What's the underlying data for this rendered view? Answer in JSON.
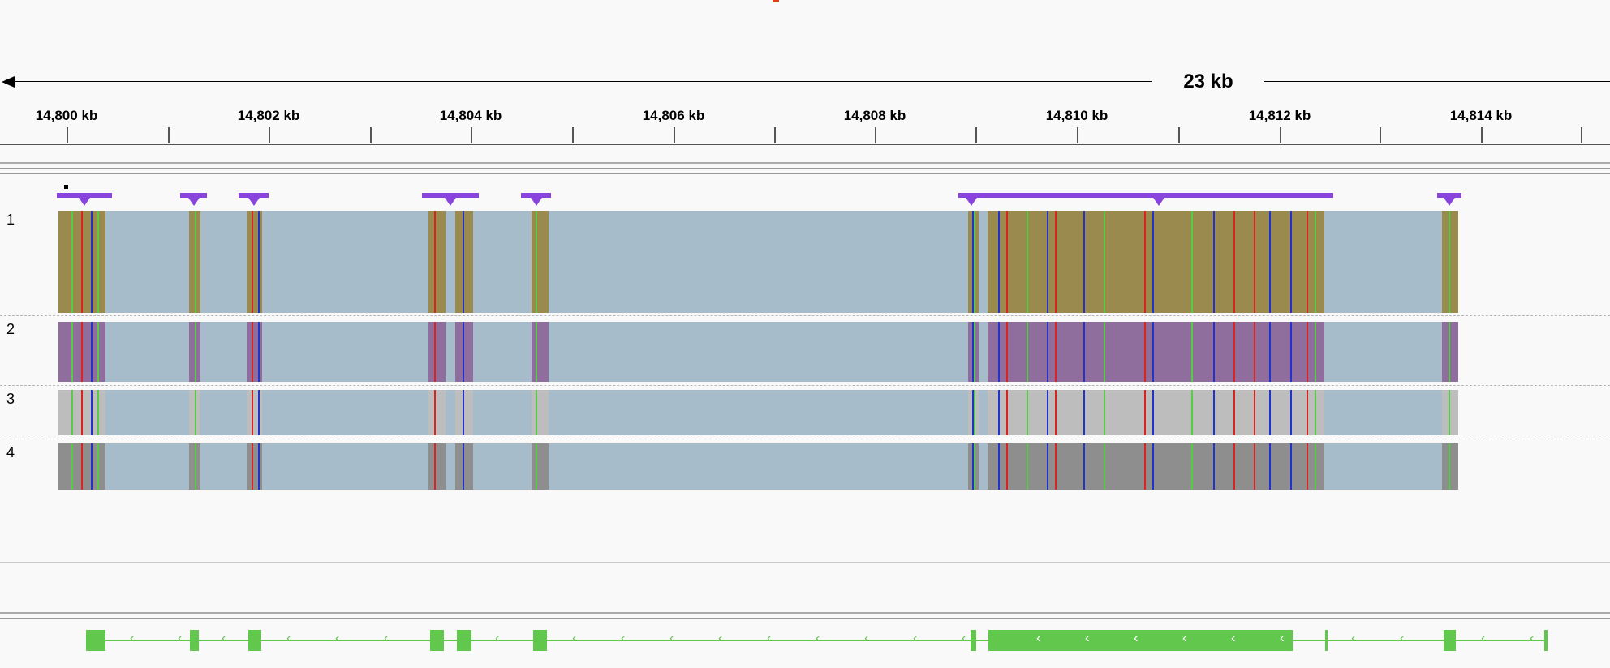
{
  "region_span": {
    "label": "23 kb"
  },
  "ruler": {
    "ticks": [
      "14,800 kb",
      "14,802 kb",
      "14,804 kb",
      "14,806 kb",
      "14,808 kb",
      "14,810 kb",
      "14,812 kb",
      "14,814 kb"
    ]
  },
  "tracks": [
    {
      "label": "1",
      "color": "#9b8a4e"
    },
    {
      "label": "2",
      "color": "#8f6e9e"
    },
    {
      "label": "3",
      "color": "#bdbdbd"
    },
    {
      "label": "4",
      "color": "#8e8e8e"
    }
  ],
  "colors": {
    "background": "#f9f9f9",
    "intron_fill": "#a7bccb",
    "insertion": "#8844dd",
    "gene": "#62c84d",
    "mismatch_red": "#d22",
    "mismatch_green": "#55cc44",
    "mismatch_blue": "#2233cc",
    "current_region_marker": "#e23b24"
  },
  "gene_track": {
    "strand": "minus",
    "direction_glyph": "‹"
  }
}
